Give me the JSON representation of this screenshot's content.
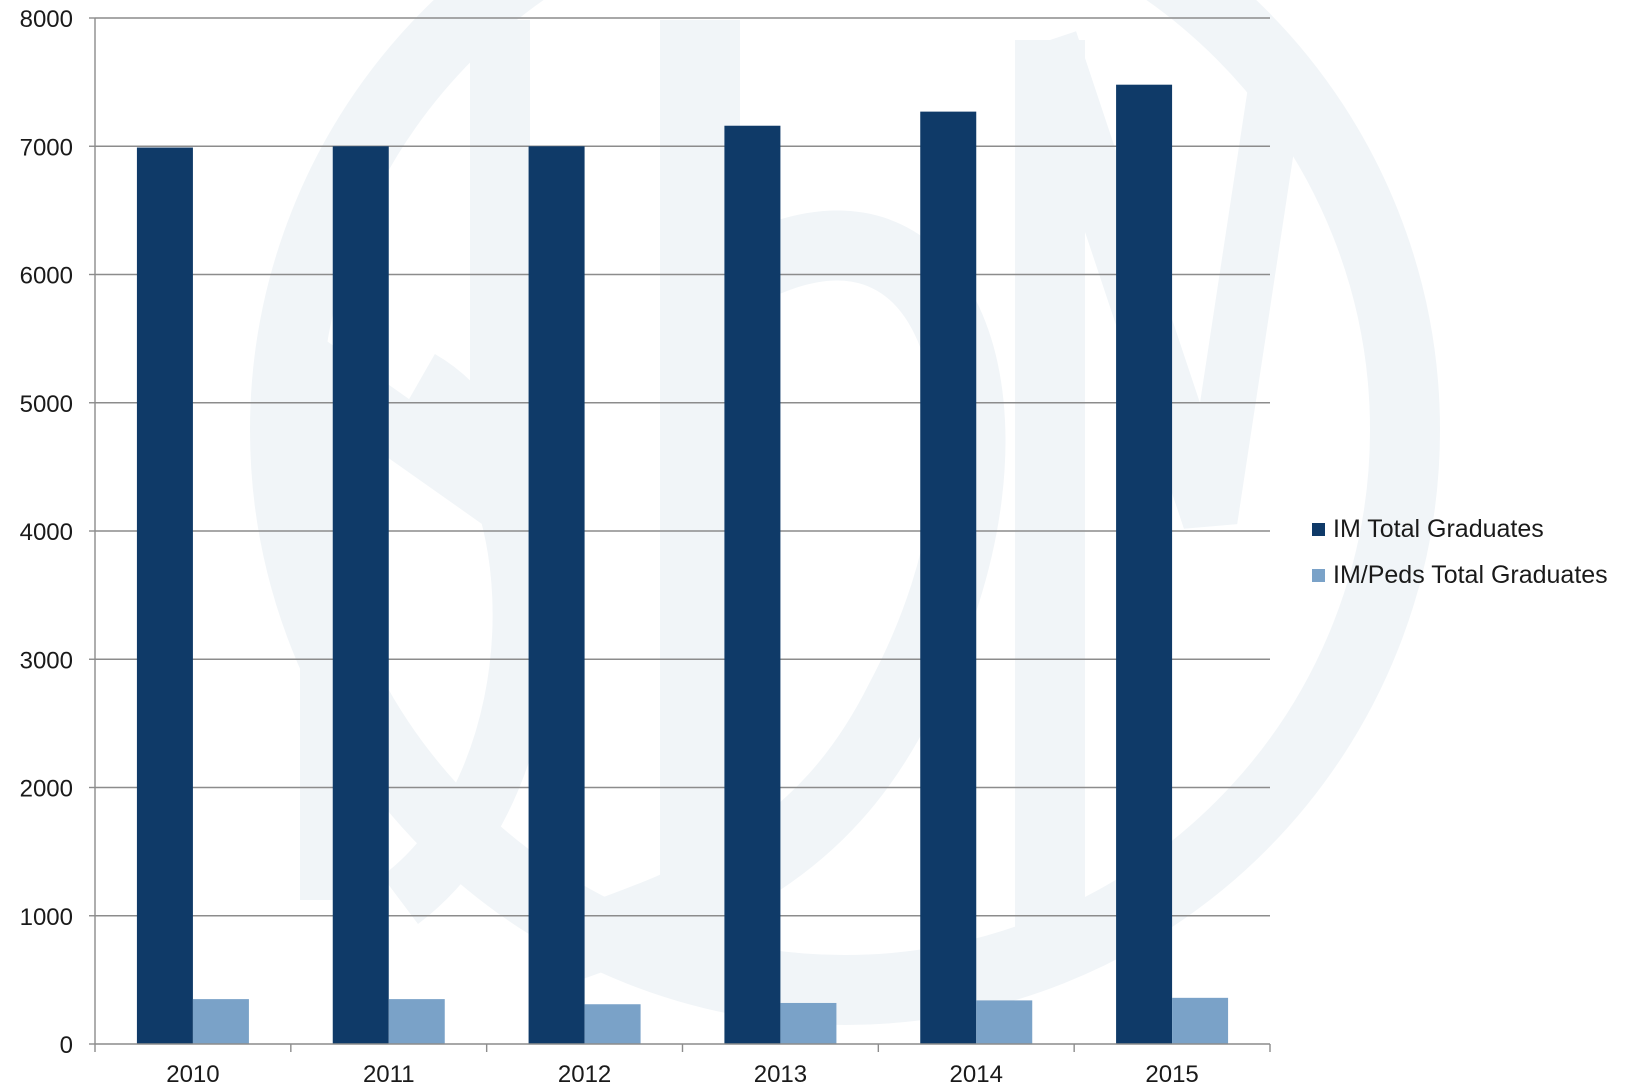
{
  "chart_data": {
    "type": "bar",
    "categories": [
      "2010",
      "2011",
      "2012",
      "2013",
      "2014",
      "2015"
    ],
    "series": [
      {
        "name": "IM Total Graduates",
        "color": "#0f3a68",
        "values": [
          6990,
          7000,
          7000,
          7160,
          7270,
          7480
        ]
      },
      {
        "name": "IM/Peds Total Graduates",
        "color": "#7aa2c8",
        "values": [
          350,
          350,
          310,
          320,
          340,
          360
        ]
      }
    ],
    "yticks": [
      "0",
      "1000",
      "2000",
      "3000",
      "4000",
      "5000",
      "6000",
      "7000",
      "8000"
    ],
    "ylim": [
      0,
      8000
    ],
    "grid": true,
    "legend_position": "right",
    "watermark": "SHM logo",
    "colors": {
      "grid": "#8c8c8c",
      "axis": "#8c8c8c",
      "watermark": "#f1f5f8"
    }
  }
}
